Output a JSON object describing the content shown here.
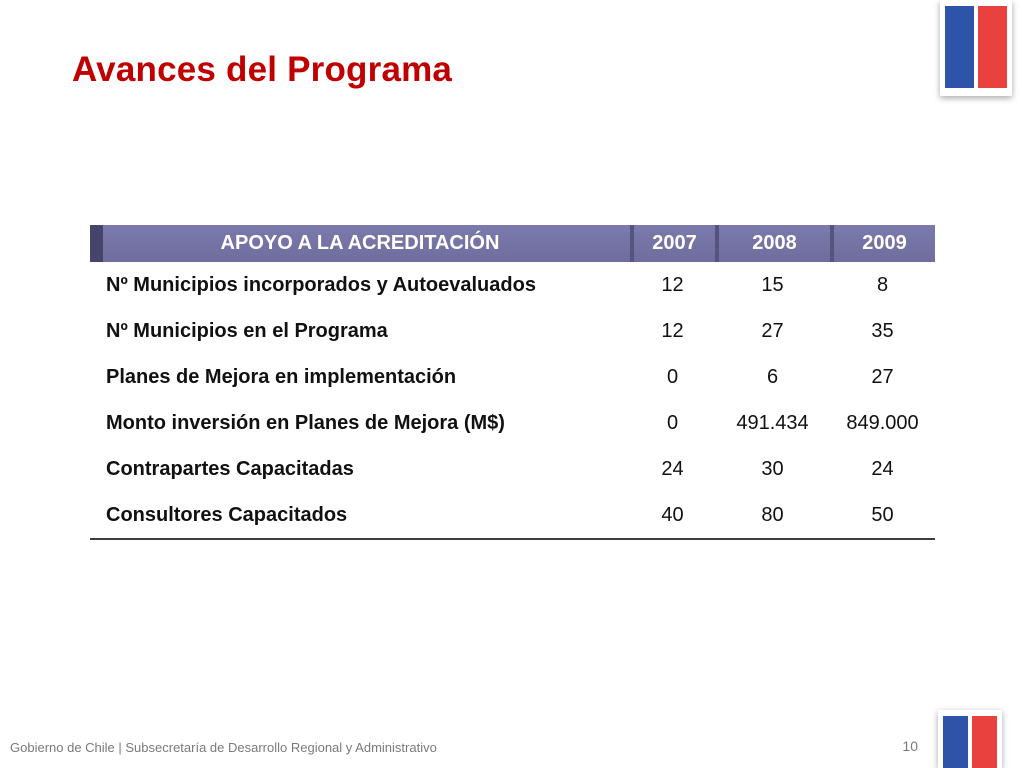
{
  "slide": {
    "title": "Avances del Programa",
    "footer": "Gobierno de Chile | Subsecretaría de Desarrollo Regional y Administrativo",
    "page_number": "10"
  },
  "colors": {
    "accent_red": "#C00000",
    "header_purple": "#6E6D9E",
    "header_purple_light": "#7B7AAC",
    "header_divider": "#55547F",
    "header_accent_dark": "#45446A",
    "flag_blue": "#2D54A8",
    "flag_red": "#E8413E",
    "footer_gray": "#7A7A7A"
  },
  "table": {
    "header": {
      "label": "APOYO A LA ACREDITACIÓN",
      "years": [
        "2007",
        "2008",
        "2009"
      ]
    },
    "rows": [
      {
        "label": "Nº Municipios incorporados y Autoevaluados",
        "values": [
          "12",
          "15",
          "8"
        ]
      },
      {
        "label": "Nº Municipios en el Programa",
        "values": [
          "12",
          "27",
          "35"
        ]
      },
      {
        "label": "Planes de Mejora en implementación",
        "values": [
          "0",
          "6",
          "27"
        ]
      },
      {
        "label": "Monto inversión en Planes de Mejora (M$)",
        "values": [
          "0",
          "491.434",
          "849.000"
        ]
      },
      {
        "label": "Contrapartes Capacitadas",
        "values": [
          "24",
          "30",
          "24"
        ]
      },
      {
        "label": "Consultores Capacitados",
        "values": [
          "40",
          "80",
          "50"
        ]
      }
    ]
  }
}
